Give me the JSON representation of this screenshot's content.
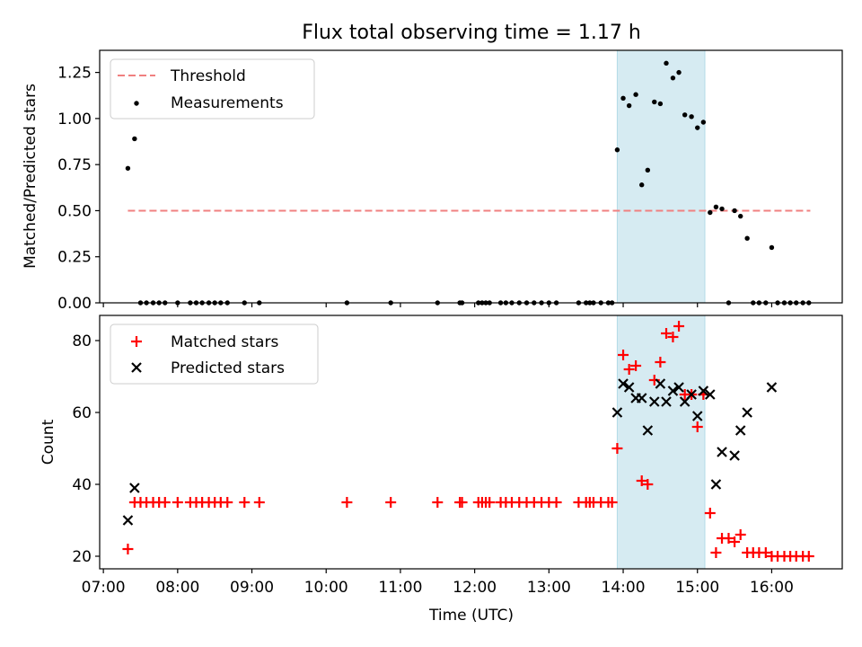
{
  "figure_title": "Flux total observing time = 1.17 h",
  "chart_data": [
    {
      "type": "scatter",
      "panel": "top",
      "title": "Flux total observing time = 1.17 h",
      "xlabel": "",
      "ylabel": "Matched/Predicted stars",
      "xlim": [
        6.95,
        16.95
      ],
      "ylim": [
        0,
        1.37
      ],
      "xticks": [
        7,
        8,
        9,
        10,
        11,
        12,
        13,
        14,
        15,
        16
      ],
      "yticks": [
        0.0,
        0.25,
        0.5,
        0.75,
        1.0,
        1.25
      ],
      "ytick_labels": [
        "0.00",
        "0.25",
        "0.50",
        "0.75",
        "1.00",
        "1.25"
      ],
      "highlight_span": {
        "x0": 13.92,
        "x1": 15.1,
        "color": "#add8e6"
      },
      "threshold": {
        "name": "Threshold",
        "x0": 7.33,
        "x1": 16.52,
        "y": 0.5,
        "color": "#f08080"
      },
      "legend_location": "upper left",
      "series": [
        {
          "name": "Measurements",
          "color": "#000000",
          "marker": "dot",
          "x": [
            7.33,
            7.42,
            7.5,
            7.58,
            7.67,
            7.75,
            7.83,
            8.0,
            8.17,
            8.25,
            8.33,
            8.42,
            8.5,
            8.58,
            8.67,
            8.9,
            9.1,
            10.28,
            10.87,
            11.5,
            11.8,
            11.83,
            12.05,
            12.1,
            12.15,
            12.2,
            12.35,
            12.42,
            12.5,
            12.6,
            12.7,
            12.8,
            12.9,
            13.0,
            13.1,
            13.4,
            13.5,
            13.55,
            13.6,
            13.7,
            13.8,
            13.85,
            13.92,
            14.0,
            14.08,
            14.17,
            14.25,
            14.33,
            14.42,
            14.5,
            14.58,
            14.67,
            14.75,
            14.83,
            14.92,
            15.0,
            15.08,
            15.17,
            15.25,
            15.33,
            15.42,
            15.5,
            15.58,
            15.67,
            15.75,
            15.83,
            15.92,
            16.0,
            16.08,
            16.17,
            16.25,
            16.33,
            16.42,
            16.5
          ],
          "y": [
            0.73,
            0.89,
            0,
            0,
            0,
            0,
            0,
            0,
            0,
            0,
            0,
            0,
            0,
            0,
            0,
            0,
            0,
            0,
            0,
            0,
            0,
            0,
            0,
            0,
            0,
            0,
            0,
            0,
            0,
            0,
            0,
            0,
            0,
            0,
            0,
            0,
            0,
            0,
            0,
            0,
            0,
            0,
            0.83,
            1.11,
            1.07,
            1.13,
            0.64,
            0.72,
            1.09,
            1.08,
            1.3,
            1.22,
            1.25,
            1.02,
            1.01,
            0.95,
            0.98,
            0.49,
            0.52,
            0.51,
            0,
            0.5,
            0.47,
            0.35,
            0,
            0,
            0,
            0.3,
            0,
            0,
            0,
            0,
            0,
            0
          ]
        }
      ]
    },
    {
      "type": "scatter",
      "panel": "bottom",
      "title": "",
      "xlabel": "Time (UTC)",
      "ylabel": "Count",
      "xlim": [
        6.95,
        16.95
      ],
      "ylim": [
        16.5,
        87
      ],
      "xticks": [
        7,
        8,
        9,
        10,
        11,
        12,
        13,
        14,
        15,
        16
      ],
      "xtick_labels": [
        "07:00",
        "08:00",
        "09:00",
        "10:00",
        "11:00",
        "12:00",
        "13:00",
        "14:00",
        "15:00",
        "16:00"
      ],
      "yticks": [
        20,
        40,
        60,
        80
      ],
      "ytick_labels": [
        "20",
        "40",
        "60",
        "80"
      ],
      "highlight_span": {
        "x0": 13.92,
        "x1": 15.1,
        "color": "#add8e6"
      },
      "legend_location": "upper left",
      "series": [
        {
          "name": "Matched stars",
          "color": "#ff0000",
          "marker": "plus",
          "x": [
            7.33,
            7.42,
            7.5,
            7.58,
            7.67,
            7.75,
            7.83,
            8.0,
            8.17,
            8.25,
            8.33,
            8.42,
            8.5,
            8.58,
            8.67,
            8.9,
            9.1,
            10.28,
            10.87,
            11.5,
            11.8,
            11.83,
            12.05,
            12.1,
            12.15,
            12.2,
            12.35,
            12.42,
            12.5,
            12.6,
            12.7,
            12.8,
            12.9,
            13.0,
            13.1,
            13.4,
            13.5,
            13.55,
            13.6,
            13.7,
            13.8,
            13.85,
            13.92,
            14.0,
            14.08,
            14.17,
            14.25,
            14.33,
            14.42,
            14.5,
            14.58,
            14.67,
            14.75,
            14.83,
            14.92,
            15.0,
            15.08,
            15.17,
            15.25,
            15.33,
            15.42,
            15.5,
            15.58,
            15.67,
            15.75,
            15.83,
            15.92,
            16.0,
            16.08,
            16.17,
            16.25,
            16.33,
            16.42,
            16.5
          ],
          "y": [
            22,
            35,
            35,
            35,
            35,
            35,
            35,
            35,
            35,
            35,
            35,
            35,
            35,
            35,
            35,
            35,
            35,
            35,
            35,
            35,
            35,
            35,
            35,
            35,
            35,
            35,
            35,
            35,
            35,
            35,
            35,
            35,
            35,
            35,
            35,
            35,
            35,
            35,
            35,
            35,
            35,
            35,
            50,
            76,
            72,
            73,
            41,
            40,
            69,
            74,
            82,
            81,
            84,
            65,
            65,
            56,
            65,
            32,
            21,
            25,
            25,
            24,
            26,
            21,
            21,
            21,
            21,
            20,
            20,
            20,
            20,
            20,
            20,
            20
          ]
        },
        {
          "name": "Predicted stars",
          "color": "#000000",
          "marker": "x",
          "x": [
            7.33,
            7.42,
            13.92,
            14.0,
            14.08,
            14.17,
            14.25,
            14.33,
            14.42,
            14.5,
            14.58,
            14.67,
            14.75,
            14.83,
            14.92,
            15.0,
            15.08,
            15.17,
            15.25,
            15.33,
            15.5,
            15.58,
            15.67,
            16.0
          ],
          "y": [
            30,
            39,
            60,
            68,
            67,
            64,
            64,
            55,
            63,
            68,
            63,
            66,
            67,
            63,
            65,
            59,
            66,
            65,
            40,
            49,
            48,
            55,
            60,
            67
          ]
        }
      ]
    }
  ]
}
